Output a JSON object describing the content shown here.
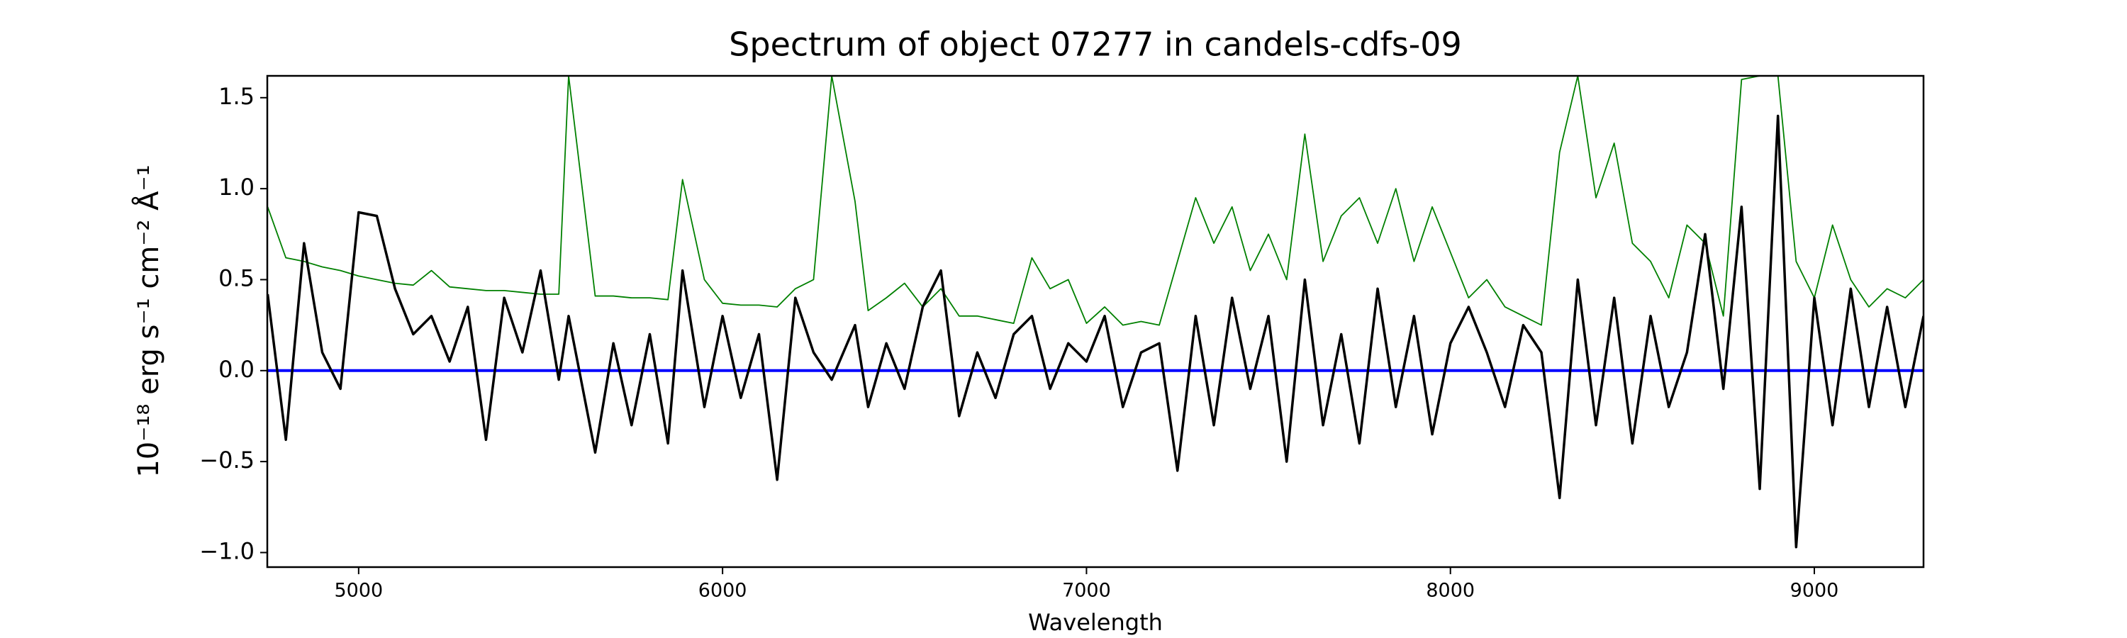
{
  "chart_data": {
    "type": "line",
    "title": "Spectrum of object 07277 in candels-cdfs-09",
    "xlabel": "Wavelength",
    "ylabel": "10⁻¹⁸ erg s⁻¹ cm⁻² Å⁻¹",
    "xlim": [
      4749,
      9300
    ],
    "ylim": [
      -1.08,
      1.62
    ],
    "xticks": [
      5000,
      6000,
      7000,
      8000,
      9000
    ],
    "yticks": [
      {
        "value": -1.0,
        "label": "−1.0"
      },
      {
        "value": -0.5,
        "label": "−0.5"
      },
      {
        "value": 0.0,
        "label": "0.0"
      },
      {
        "value": 0.5,
        "label": "0.5"
      },
      {
        "value": 1.0,
        "label": "1.0"
      },
      {
        "value": 1.5,
        "label": "1.5"
      }
    ],
    "series": [
      {
        "color": "#008000",
        "linewidth": 1.8,
        "x": [
          4750,
          4800,
          4850,
          4900,
          4950,
          5000,
          5050,
          5100,
          5150,
          5200,
          5250,
          5300,
          5350,
          5400,
          5450,
          5500,
          5550,
          5577,
          5650,
          5700,
          5750,
          5800,
          5850,
          5890,
          5950,
          6000,
          6050,
          6100,
          6150,
          6200,
          6250,
          6300,
          6364,
          6400,
          6450,
          6500,
          6550,
          6600,
          6650,
          6700,
          6750,
          6800,
          6850,
          6900,
          6950,
          7000,
          7050,
          7100,
          7150,
          7200,
          7250,
          7300,
          7350,
          7400,
          7450,
          7500,
          7550,
          7600,
          7650,
          7700,
          7750,
          7800,
          7850,
          7900,
          7950,
          8000,
          8050,
          8100,
          8150,
          8200,
          8250,
          8300,
          8350,
          8400,
          8450,
          8500,
          8550,
          8600,
          8650,
          8700,
          8750,
          8800,
          8850,
          8900,
          8950,
          9000,
          9050,
          9100,
          9150,
          9200,
          9250,
          9300
        ],
        "values": [
          0.9,
          0.62,
          0.6,
          0.57,
          0.55,
          0.52,
          0.5,
          0.48,
          0.47,
          0.55,
          0.46,
          0.45,
          0.44,
          0.44,
          0.43,
          0.42,
          0.42,
          1.62,
          0.41,
          0.41,
          0.4,
          0.4,
          0.39,
          1.05,
          0.5,
          0.37,
          0.36,
          0.36,
          0.35,
          0.45,
          0.5,
          1.62,
          0.93,
          0.33,
          0.4,
          0.48,
          0.35,
          0.45,
          0.3,
          0.3,
          0.28,
          0.26,
          0.62,
          0.45,
          0.5,
          0.26,
          0.35,
          0.25,
          0.27,
          0.25,
          0.6,
          0.95,
          0.7,
          0.9,
          0.55,
          0.75,
          0.5,
          1.3,
          0.6,
          0.85,
          0.95,
          0.7,
          1.0,
          0.6,
          0.9,
          0.65,
          0.4,
          0.5,
          0.35,
          0.3,
          0.25,
          1.2,
          1.62,
          0.95,
          1.25,
          0.7,
          0.6,
          0.4,
          0.8,
          0.7,
          0.3,
          1.6,
          1.62,
          1.62,
          0.6,
          0.4,
          0.8,
          0.5,
          0.35,
          0.45,
          0.4,
          0.5
        ]
      },
      {
        "color": "#0000ff",
        "linewidth": 4,
        "x": [
          4749,
          9300
        ],
        "values": [
          0,
          0
        ]
      },
      {
        "color": "#000000",
        "linewidth": 3.5,
        "x": [
          4750,
          4800,
          4850,
          4900,
          4950,
          5000,
          5050,
          5100,
          5150,
          5200,
          5250,
          5300,
          5350,
          5400,
          5450,
          5500,
          5550,
          5577,
          5650,
          5700,
          5750,
          5800,
          5850,
          5890,
          5950,
          6000,
          6050,
          6100,
          6150,
          6200,
          6250,
          6300,
          6364,
          6400,
          6450,
          6500,
          6550,
          6600,
          6650,
          6700,
          6750,
          6800,
          6850,
          6900,
          6950,
          7000,
          7050,
          7100,
          7150,
          7200,
          7250,
          7300,
          7350,
          7400,
          7450,
          7500,
          7550,
          7600,
          7650,
          7700,
          7750,
          7800,
          7850,
          7900,
          7950,
          8000,
          8050,
          8100,
          8150,
          8200,
          8250,
          8300,
          8350,
          8400,
          8450,
          8500,
          8550,
          8600,
          8650,
          8700,
          8750,
          8800,
          8850,
          8900,
          8950,
          9000,
          9050,
          9100,
          9150,
          9200,
          9250,
          9300
        ],
        "values": [
          0.42,
          -0.38,
          0.7,
          0.1,
          -0.1,
          0.87,
          0.85,
          0.45,
          0.2,
          0.3,
          0.05,
          0.35,
          -0.38,
          0.4,
          0.1,
          0.55,
          -0.05,
          0.3,
          -0.45,
          0.15,
          -0.3,
          0.2,
          -0.4,
          0.55,
          -0.2,
          0.3,
          -0.15,
          0.2,
          -0.6,
          0.4,
          0.1,
          -0.05,
          0.25,
          -0.2,
          0.15,
          -0.1,
          0.35,
          0.55,
          -0.25,
          0.1,
          -0.15,
          0.2,
          0.3,
          -0.1,
          0.15,
          0.05,
          0.3,
          -0.2,
          0.1,
          0.15,
          -0.55,
          0.3,
          -0.3,
          0.4,
          -0.1,
          0.3,
          -0.5,
          0.5,
          -0.3,
          0.2,
          -0.4,
          0.45,
          -0.2,
          0.3,
          -0.35,
          0.15,
          0.35,
          0.1,
          -0.2,
          0.25,
          0.1,
          -0.7,
          0.5,
          -0.3,
          0.4,
          -0.4,
          0.3,
          -0.2,
          0.1,
          0.75,
          -0.1,
          0.9,
          -0.65,
          1.4,
          -0.97,
          0.4,
          -0.3,
          0.45,
          -0.2,
          0.35,
          -0.2,
          0.3
        ]
      }
    ]
  }
}
